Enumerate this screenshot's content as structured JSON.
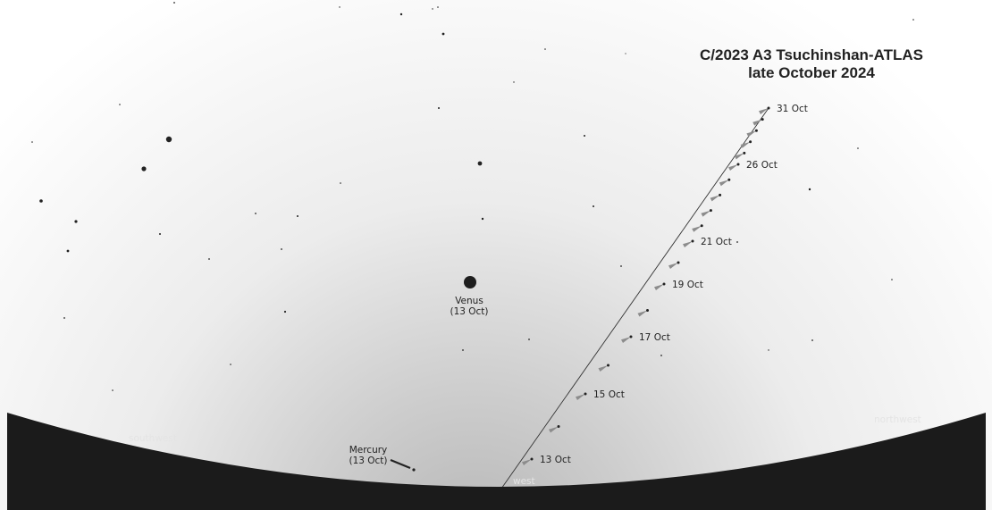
{
  "title": {
    "line1": "C/2023 A3  Tsuchinshan-ATLAS",
    "line2": "late October 2024"
  },
  "directions": {
    "southwest": "southwest",
    "west": "west",
    "northwest": "northwest"
  },
  "planets": {
    "venus": {
      "name": "Venus",
      "date": "(13 Oct)"
    },
    "mercury": {
      "name": "Mercury",
      "date": "(13 Oct)"
    }
  },
  "comet_path": {
    "days": [
      13,
      14,
      15,
      16,
      17,
      18,
      19,
      20,
      21,
      22,
      23,
      24,
      25,
      26,
      27,
      28,
      29,
      30,
      31
    ],
    "date_labels": [
      "13 Oct",
      "15 Oct",
      "17 Oct",
      "19 Oct",
      "21 Oct",
      "26 Oct",
      "31 Oct"
    ]
  },
  "colors": {
    "ground": "#1b1b1b",
    "sky_top": "#ffffff",
    "sky_horizon": "#b9b9b9",
    "stars": "#222222",
    "comet_tail": "#8c8c8c"
  }
}
